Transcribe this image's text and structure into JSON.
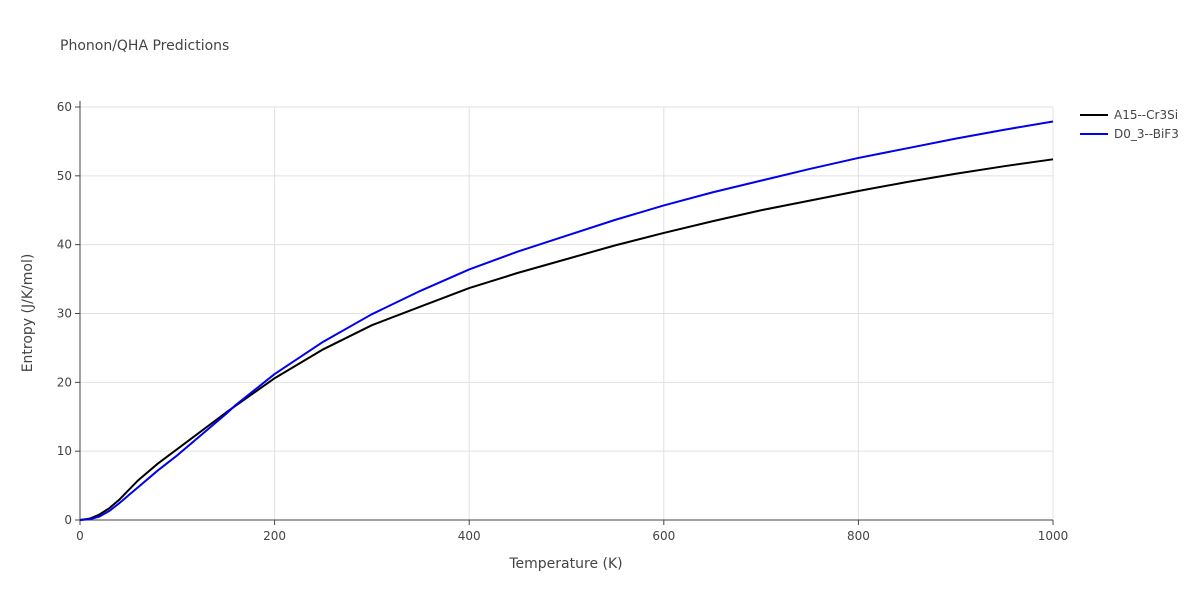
{
  "chart_data": {
    "type": "line",
    "title": "Phonon/QHA Predictions",
    "x_label": "Temperature (K)",
    "y_label": "Entropy (J/K/mol)",
    "x": [
      0,
      10,
      20,
      30,
      40,
      60,
      80,
      100,
      150,
      160,
      200,
      250,
      300,
      350,
      400,
      450,
      500,
      550,
      600,
      650,
      700,
      750,
      800,
      850,
      900,
      950,
      1000
    ],
    "series": [
      {
        "name": "A15--Cr3Si",
        "color": "#000000",
        "values": [
          0,
          0.2,
          0.8,
          1.7,
          2.9,
          5.8,
          8.2,
          10.3,
          15.6,
          16.6,
          20.6,
          24.8,
          28.3,
          31.0,
          33.7,
          35.9,
          37.9,
          39.9,
          41.7,
          43.4,
          45.0,
          46.4,
          47.8,
          49.1,
          50.3,
          51.4,
          52.4
        ]
      },
      {
        "name": "D0_3--BiF3",
        "color": "#0000ee",
        "values": [
          0,
          0.1,
          0.5,
          1.3,
          2.4,
          4.8,
          7.2,
          9.4,
          15.4,
          16.7,
          21.2,
          25.9,
          29.9,
          33.3,
          36.4,
          39.0,
          41.3,
          43.6,
          45.7,
          47.6,
          49.3,
          51.0,
          52.6,
          54.0,
          55.4,
          56.7,
          57.9
        ]
      }
    ],
    "xlim": [
      0,
      1000
    ],
    "xticks": [
      0,
      200,
      400,
      600,
      800,
      1000
    ],
    "ylim": [
      0,
      60
    ],
    "yticks": [
      0,
      10,
      20,
      30,
      40,
      50,
      60
    ],
    "grid": true,
    "legend": "top-right"
  }
}
